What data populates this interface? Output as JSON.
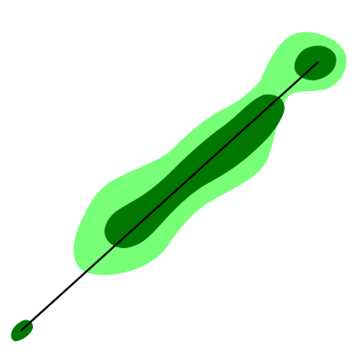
{
  "diagram": {
    "colors": {
      "background": "#ffffff",
      "outer_zone": "#77ff77",
      "inner_zone": "#007700",
      "line": "#000000"
    }
  }
}
